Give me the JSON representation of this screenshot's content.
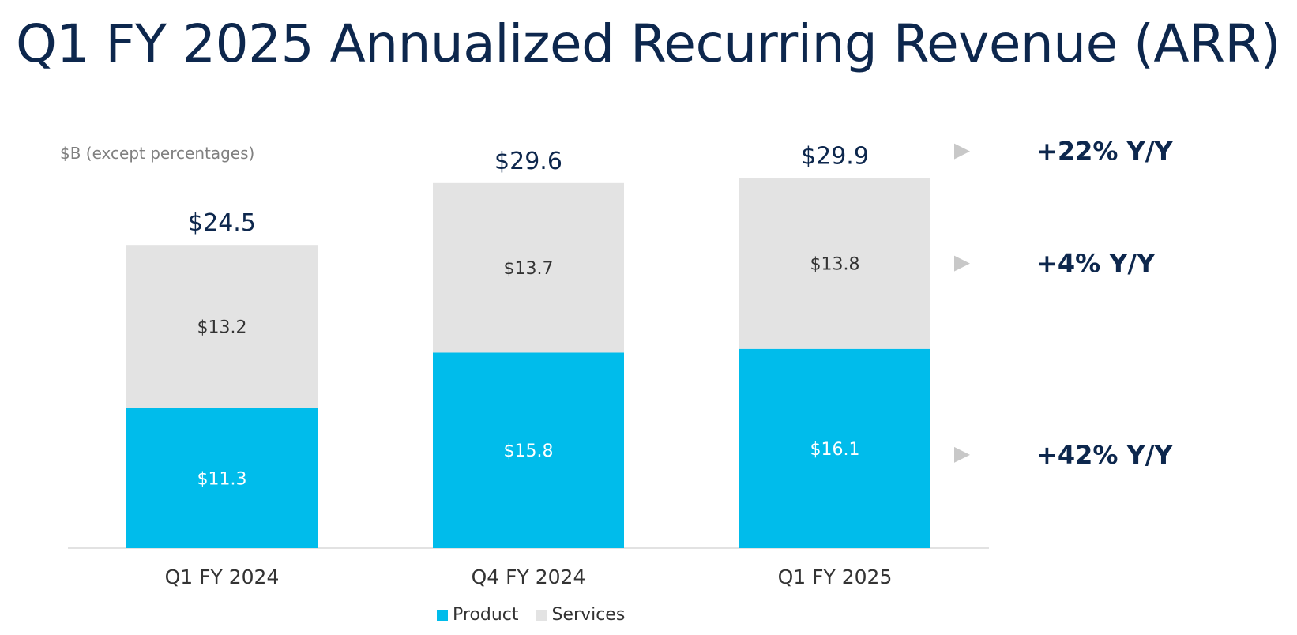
{
  "title": "Q1 FY 2025 Annualized Recurring Revenue (ARR)",
  "chart_data": {
    "type": "bar",
    "stacked": true,
    "title": "",
    "unit_note": "$B (except percentages)",
    "categories": [
      "Q1 FY 2024",
      "Q4 FY 2024",
      "Q1 FY 2025"
    ],
    "series": [
      {
        "name": "Product",
        "values": [
          11.3,
          15.8,
          16.1
        ],
        "labels": [
          "$11.3",
          "$15.8",
          "$16.1"
        ],
        "color": "#00bceb"
      },
      {
        "name": "Services",
        "values": [
          13.2,
          13.7,
          13.8
        ],
        "labels": [
          "$13.2",
          "$13.7",
          "$13.8"
        ],
        "color": "#e3e3e3"
      }
    ],
    "totals": [
      24.5,
      29.6,
      29.9
    ],
    "total_labels": [
      "$24.5",
      "$29.6",
      "$29.9"
    ],
    "ylim": [
      0,
      30
    ],
    "grid": false,
    "legend_position": "bottom-center",
    "growth_annotations": [
      {
        "target": "Total",
        "label": "+22% Y/Y"
      },
      {
        "target": "Services",
        "label": "+4% Y/Y"
      },
      {
        "target": "Product",
        "label": "+42% Y/Y"
      }
    ]
  }
}
